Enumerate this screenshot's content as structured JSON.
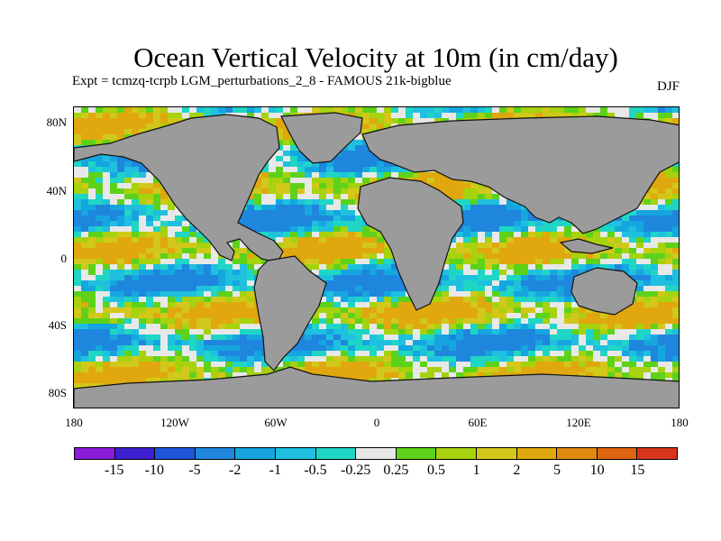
{
  "title": "Ocean Vertical Velocity at 10m (in cm/day)",
  "subtitle": "Expt = tcmzq-tcrpb   LGM_perturbations_2_8 - FAMOUS 21k-bigblue",
  "season": "DJF",
  "lat_labels": [
    "80N",
    "40N",
    "0",
    "40S",
    "80S"
  ],
  "lon_labels": [
    "180",
    "120W",
    "60W",
    "0",
    "60E",
    "120E",
    "180"
  ],
  "colorbar": {
    "labels": [
      "-15",
      "-10",
      "-5",
      "-2",
      "-1",
      "-0.5",
      "-0.25",
      "0.25",
      "0.5",
      "1",
      "2",
      "5",
      "10",
      "15"
    ],
    "colors": [
      "#8a1bd8",
      "#3c1fd0",
      "#1f55d8",
      "#1f86dd",
      "#15a6e0",
      "#1fc0df",
      "#1fd6c4",
      "#e8e8e8",
      "#5ed21a",
      "#a6d20e",
      "#d2c81a",
      "#e0a80e",
      "#e08a0e",
      "#de6410",
      "#d8341a"
    ]
  },
  "land_color": "#9b9b9b"
}
